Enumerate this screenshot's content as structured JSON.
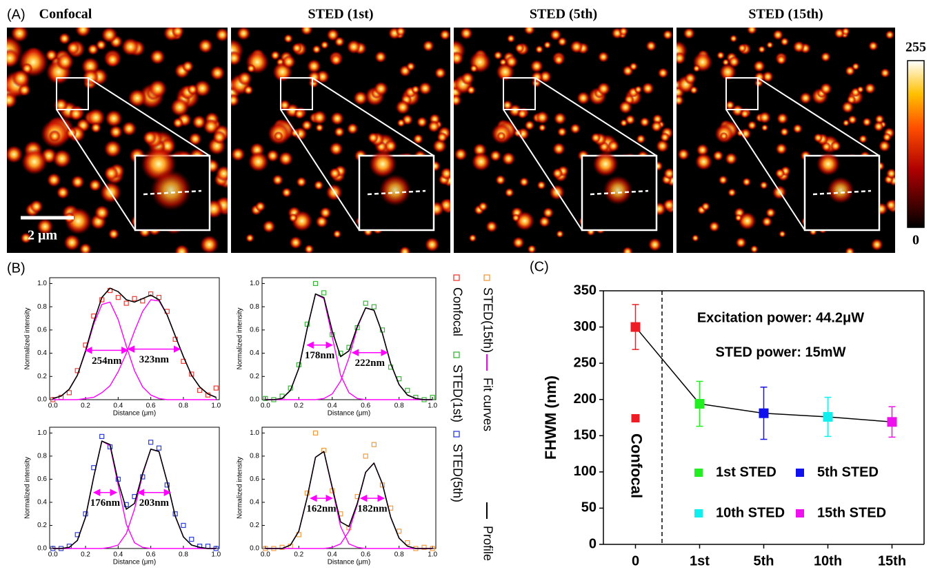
{
  "panel_labels": [
    "(A)",
    "(B)",
    "(C)"
  ],
  "panel_a": {
    "titles": [
      "Confocal",
      "STED (1st)",
      "STED (5th)",
      "STED (15th)"
    ],
    "colorbar": {
      "max": 255,
      "min": 0
    },
    "scale_bar": "2 μm"
  },
  "legend_b": [
    {
      "name": "Confocal",
      "color": "#ee3b33",
      "marker": "square"
    },
    {
      "name": "STED(1st)",
      "color": "#35b835",
      "marker": "square"
    },
    {
      "name": "STED(5th)",
      "color": "#2b3bd6",
      "marker": "square"
    },
    {
      "name": "STED(15th)",
      "color": "#f39a3c",
      "marker": "square"
    },
    {
      "name": "Fit curves",
      "color": "#ff00ff",
      "marker": "line"
    },
    {
      "name": "Profile",
      "color": "#000000",
      "marker": "line"
    }
  ],
  "chart_data": [
    {
      "type": "line",
      "xlabel": "Distance (μm)",
      "ylabel": "Normalized intensity",
      "xlim": [
        -0.02,
        1.02
      ],
      "ylim": [
        0,
        1.05
      ],
      "xticks": [
        {
          "value": 0,
          "label": "0.0"
        },
        {
          "value": 0.2,
          "label": "0.2"
        },
        {
          "value": 0.4,
          "label": "0.4"
        },
        {
          "value": 0.6,
          "label": "0.6"
        },
        {
          "value": 0.8,
          "label": "0.8"
        },
        {
          "value": 1,
          "label": "1.0"
        }
      ],
      "yticks": [
        {
          "value": 0,
          "label": "0.0"
        },
        {
          "value": 0.2,
          "label": "0.2"
        },
        {
          "value": 0.4,
          "label": "0.4"
        },
        {
          "value": 0.6,
          "label": "0.6"
        },
        {
          "value": 0.8,
          "label": "0.8"
        },
        {
          "value": 1,
          "label": "1.0"
        }
      ],
      "x": [
        0,
        0.05,
        0.1,
        0.15,
        0.2,
        0.25,
        0.3,
        0.35,
        0.4,
        0.45,
        0.5,
        0.55,
        0.6,
        0.65,
        0.7,
        0.75,
        0.8,
        0.85,
        0.9,
        0.95,
        1
      ],
      "series": [
        {
          "color": "#ee3b33",
          "marker": "square",
          "values": [
            0.0,
            0.02,
            0.06,
            0.25,
            0.47,
            0.72,
            0.86,
            0.94,
            0.88,
            0.83,
            0.87,
            0.85,
            0.91,
            0.88,
            0.76,
            0.52,
            0.33,
            0.22,
            0.08,
            0.04,
            0.1
          ]
        },
        {
          "color": "#ff00ff",
          "marker": "none",
          "values": [
            0.01,
            0.03,
            0.09,
            0.21,
            0.41,
            0.65,
            0.82,
            0.84,
            0.69,
            0.46,
            0.25,
            0.11,
            0.04,
            0.01,
            0,
            0,
            0,
            0,
            0,
            0,
            0
          ]
        },
        {
          "color": "#ff00ff",
          "marker": "none",
          "values": [
            0,
            0,
            0,
            0,
            0.01,
            0.02,
            0.06,
            0.12,
            0.24,
            0.4,
            0.59,
            0.76,
            0.86,
            0.85,
            0.73,
            0.55,
            0.37,
            0.21,
            0.11,
            0.05,
            0.02
          ]
        },
        {
          "color": "#000000",
          "marker": "none",
          "values": [
            0.01,
            0.03,
            0.09,
            0.21,
            0.42,
            0.67,
            0.88,
            0.96,
            0.93,
            0.86,
            0.84,
            0.87,
            0.9,
            0.86,
            0.73,
            0.55,
            0.37,
            0.21,
            0.11,
            0.05,
            0.02
          ]
        }
      ],
      "fwhm": [
        {
          "label": "254nm",
          "x": [
            0.2,
            0.46
          ],
          "y": 0.425
        },
        {
          "label": "323nm",
          "x": [
            0.46,
            0.78
          ],
          "y": 0.435
        }
      ]
    },
    {
      "type": "line",
      "xlabel": "Distance (μm)",
      "ylabel": "Normalized intensity",
      "xlim": [
        -0.02,
        1.02
      ],
      "ylim": [
        0,
        1.05
      ],
      "xticks": [
        {
          "value": 0,
          "label": "0.0"
        },
        {
          "value": 0.2,
          "label": "0.2"
        },
        {
          "value": 0.4,
          "label": "0.4"
        },
        {
          "value": 0.6,
          "label": "0.6"
        },
        {
          "value": 0.8,
          "label": "0.8"
        },
        {
          "value": 1,
          "label": "1.0"
        }
      ],
      "yticks": [
        {
          "value": 0,
          "label": "0.0"
        },
        {
          "value": 0.2,
          "label": "0.2"
        },
        {
          "value": 0.4,
          "label": "0.4"
        },
        {
          "value": 0.6,
          "label": "0.6"
        },
        {
          "value": 0.8,
          "label": "0.8"
        },
        {
          "value": 1,
          "label": "1.0"
        }
      ],
      "x": [
        0,
        0.05,
        0.1,
        0.15,
        0.2,
        0.25,
        0.3,
        0.35,
        0.4,
        0.45,
        0.5,
        0.55,
        0.6,
        0.65,
        0.7,
        0.75,
        0.8,
        0.85,
        0.9,
        0.95,
        1
      ],
      "series": [
        {
          "color": "#35b835",
          "marker": "square",
          "values": [
            0.01,
            0.0,
            0.03,
            0.1,
            0.3,
            0.65,
            1.0,
            0.92,
            0.56,
            0.4,
            0.45,
            0.62,
            0.83,
            0.8,
            0.6,
            0.28,
            0.18,
            0.08,
            0.02,
            0.0,
            0.02
          ]
        },
        {
          "color": "#ff00ff",
          "marker": "none",
          "values": [
            0,
            0,
            0.01,
            0.08,
            0.27,
            0.61,
            0.91,
            0.87,
            0.54,
            0.21,
            0.06,
            0.01,
            0,
            0,
            0,
            0,
            0,
            0,
            0,
            0,
            0
          ]
        },
        {
          "color": "#ff00ff",
          "marker": "none",
          "values": [
            0,
            0,
            0,
            0,
            0,
            0,
            0,
            0.01,
            0.05,
            0.16,
            0.36,
            0.62,
            0.79,
            0.77,
            0.57,
            0.31,
            0.13,
            0.04,
            0.01,
            0,
            0
          ]
        },
        {
          "color": "#000000",
          "marker": "none",
          "values": [
            0,
            0,
            0.01,
            0.08,
            0.27,
            0.61,
            0.91,
            0.88,
            0.59,
            0.37,
            0.42,
            0.63,
            0.79,
            0.77,
            0.57,
            0.31,
            0.13,
            0.04,
            0.01,
            0,
            0
          ]
        }
      ],
      "fwhm": [
        {
          "label": "178nm",
          "x": [
            0.25,
            0.4
          ],
          "y": 0.47
        },
        {
          "label": "222nm",
          "x": [
            0.52,
            0.73
          ],
          "y": 0.405
        }
      ]
    },
    {
      "type": "line",
      "xlabel": "Distance (μm)",
      "ylabel": "Normalized intensity",
      "xlim": [
        -0.02,
        1.02
      ],
      "ylim": [
        0,
        1.05
      ],
      "xticks": [
        {
          "value": 0,
          "label": "0.0"
        },
        {
          "value": 0.2,
          "label": "0.2"
        },
        {
          "value": 0.4,
          "label": "0.4"
        },
        {
          "value": 0.6,
          "label": "0.6"
        },
        {
          "value": 0.8,
          "label": "0.8"
        },
        {
          "value": 1,
          "label": "1.0"
        }
      ],
      "yticks": [
        {
          "value": 0,
          "label": "0.0"
        },
        {
          "value": 0.2,
          "label": "0.2"
        },
        {
          "value": 0.4,
          "label": "0.4"
        },
        {
          "value": 0.6,
          "label": "0.6"
        },
        {
          "value": 0.8,
          "label": "0.8"
        },
        {
          "value": 1,
          "label": "1.0"
        }
      ],
      "x": [
        0,
        0.05,
        0.1,
        0.15,
        0.2,
        0.25,
        0.3,
        0.35,
        0.4,
        0.45,
        0.5,
        0.55,
        0.6,
        0.65,
        0.7,
        0.75,
        0.8,
        0.85,
        0.9,
        0.95,
        1
      ],
      "series": [
        {
          "color": "#2b3bd6",
          "marker": "square",
          "values": [
            0.0,
            0.0,
            0.02,
            0.12,
            0.3,
            0.7,
            0.97,
            0.88,
            0.6,
            0.38,
            0.45,
            0.62,
            0.92,
            0.87,
            0.55,
            0.3,
            0.2,
            0.08,
            0.02,
            0.02,
            0.0
          ]
        },
        {
          "color": "#ff00ff",
          "marker": "none",
          "values": [
            0,
            0,
            0.01,
            0.07,
            0.27,
            0.62,
            0.93,
            0.89,
            0.55,
            0.21,
            0.05,
            0.01,
            0,
            0,
            0,
            0,
            0,
            0,
            0,
            0,
            0
          ]
        },
        {
          "color": "#ff00ff",
          "marker": "none",
          "values": [
            0,
            0,
            0,
            0,
            0,
            0,
            0,
            0.01,
            0.03,
            0.13,
            0.34,
            0.64,
            0.86,
            0.84,
            0.58,
            0.28,
            0.1,
            0.03,
            0.01,
            0,
            0
          ]
        },
        {
          "color": "#000000",
          "marker": "none",
          "values": [
            0,
            0,
            0.01,
            0.07,
            0.27,
            0.62,
            0.93,
            0.9,
            0.58,
            0.34,
            0.39,
            0.65,
            0.86,
            0.84,
            0.58,
            0.28,
            0.1,
            0.03,
            0.01,
            0,
            0
          ]
        }
      ],
      "fwhm": [
        {
          "label": "176nm",
          "x": [
            0.25,
            0.39
          ],
          "y": 0.485
        },
        {
          "label": "203nm",
          "x": [
            0.52,
            0.72
          ],
          "y": 0.485
        }
      ]
    },
    {
      "type": "line",
      "xlabel": "Distance (μm)",
      "ylabel": "Normalized intensity",
      "xlim": [
        -0.02,
        1.02
      ],
      "ylim": [
        0,
        1.05
      ],
      "xticks": [
        {
          "value": 0,
          "label": "0.0"
        },
        {
          "value": 0.2,
          "label": "0.2"
        },
        {
          "value": 0.4,
          "label": "0.4"
        },
        {
          "value": 0.6,
          "label": "0.6"
        },
        {
          "value": 0.8,
          "label": "0.8"
        },
        {
          "value": 1,
          "label": "1.0"
        }
      ],
      "yticks": [
        {
          "value": 0,
          "label": "0.0"
        },
        {
          "value": 0.2,
          "label": "0.2"
        },
        {
          "value": 0.4,
          "label": "0.4"
        },
        {
          "value": 0.6,
          "label": "0.6"
        },
        {
          "value": 0.8,
          "label": "0.8"
        },
        {
          "value": 1,
          "label": "1.0"
        }
      ],
      "x": [
        0,
        0.05,
        0.1,
        0.15,
        0.2,
        0.25,
        0.3,
        0.35,
        0.4,
        0.45,
        0.5,
        0.55,
        0.6,
        0.65,
        0.7,
        0.75,
        0.8,
        0.85,
        0.9,
        0.95,
        1
      ],
      "series": [
        {
          "color": "#f39a3c",
          "marker": "square",
          "values": [
            0.0,
            0.0,
            0.01,
            0.02,
            0.12,
            0.48,
            1.0,
            0.85,
            0.5,
            0.3,
            0.18,
            0.45,
            0.8,
            0.9,
            0.55,
            0.35,
            0.15,
            0.05,
            0.0,
            0.01,
            0.0
          ]
        },
        {
          "color": "#ff00ff",
          "marker": "none",
          "values": [
            0,
            0,
            0,
            0.03,
            0.15,
            0.44,
            0.79,
            0.84,
            0.52,
            0.19,
            0.04,
            0.01,
            0,
            0,
            0,
            0,
            0,
            0,
            0,
            0,
            0
          ]
        },
        {
          "color": "#ff00ff",
          "marker": "none",
          "values": [
            0,
            0,
            0,
            0,
            0,
            0,
            0,
            0,
            0.01,
            0.04,
            0.15,
            0.38,
            0.66,
            0.74,
            0.56,
            0.27,
            0.09,
            0.02,
            0,
            0,
            0
          ]
        },
        {
          "color": "#000000",
          "marker": "none",
          "values": [
            0,
            0,
            0,
            0.03,
            0.15,
            0.44,
            0.79,
            0.84,
            0.53,
            0.23,
            0.19,
            0.39,
            0.66,
            0.74,
            0.56,
            0.27,
            0.09,
            0.02,
            0,
            0,
            0
          ]
        }
      ],
      "fwhm": [
        {
          "label": "162nm",
          "x": [
            0.27,
            0.4
          ],
          "y": 0.435
        },
        {
          "label": "182nm",
          "x": [
            0.57,
            0.71
          ],
          "y": 0.435
        }
      ]
    },
    {
      "type": "errorbar",
      "ylabel": "FHWM (nm)",
      "categories": [
        "0",
        "1st",
        "5th",
        "10th",
        "15th"
      ],
      "values": [
        300,
        194,
        181,
        176,
        169
      ],
      "errors": [
        31,
        31,
        36,
        27,
        21
      ],
      "colors": [
        "#ee1c24",
        "#22ee22",
        "#1111ee",
        "#11eeee",
        "#ee11ee"
      ],
      "ylim": [
        0,
        350
      ],
      "yticks": [
        0,
        50,
        100,
        150,
        200,
        250,
        300,
        350
      ],
      "annotations": [
        "Excitation power: 44.2μW",
        "STED power: 15mW"
      ],
      "legend": [
        {
          "name": "Confocal",
          "color": "#ee1c24"
        },
        {
          "name": "1st STED",
          "color": "#22ee22"
        },
        {
          "name": "5th STED",
          "color": "#1111ee"
        },
        {
          "name": "10th STED",
          "color": "#11eeee"
        },
        {
          "name": "15th STED",
          "color": "#ee11ee"
        }
      ]
    }
  ]
}
